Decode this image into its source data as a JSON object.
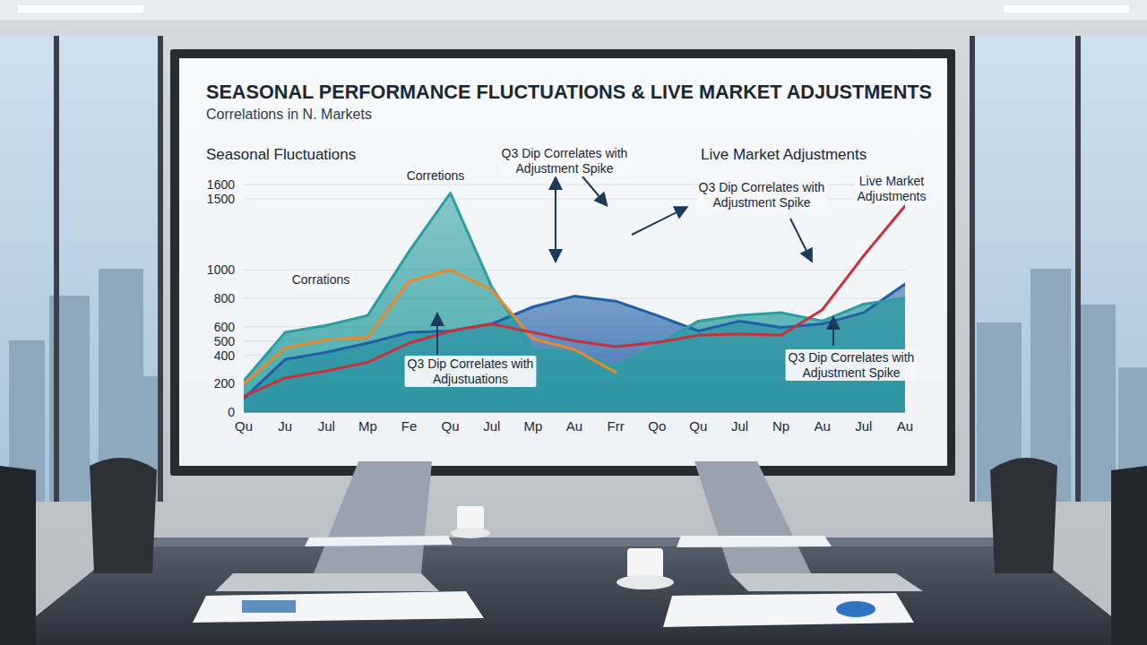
{
  "chart_data": {
    "type": "line",
    "title": "SEASONAL PERFORMANCE FLUCTUATIONS & LIVE MARKET ADJUSTMENTS",
    "subtitle": "Correlations in N. Markets",
    "section_labels": [
      "Seasonal Fluctuations",
      "Live Market Adjustments"
    ],
    "annotations": [
      {
        "lines": [
          "Corrations"
        ]
      },
      {
        "lines": [
          "Corretions"
        ]
      },
      {
        "lines": [
          "Q3 Dip Correlates with",
          "Adjustment Spike"
        ]
      },
      {
        "lines": [
          "Q3 Dip Correlates with",
          "Adjustment Spike"
        ]
      },
      {
        "lines": [
          "Live Market",
          "Adjustments"
        ]
      },
      {
        "lines": [
          "Q3 Dip Correlates with",
          "Adjustuations"
        ]
      },
      {
        "lines": [
          "Q3 Dip Correlates with",
          "Adjustment Spike"
        ]
      }
    ],
    "categories": [
      "Qu",
      "Ju",
      "Jul",
      "Mp",
      "Fe",
      "Qu",
      "Jul",
      "Mp",
      "Au",
      "Frr",
      "Qo",
      "Qu",
      "Jul",
      "Np",
      "Au",
      "Jul",
      "Au"
    ],
    "series": [
      {
        "color": "#1f5fa8",
        "type": "area",
        "values": [
          95,
          370,
          420,
          485,
          560,
          570,
          620,
          740,
          815,
          780,
          680,
          570,
          640,
          595,
          620,
          700,
          900
        ]
      },
      {
        "color": "#2a9ea0",
        "type": "area",
        "values": [
          220,
          560,
          610,
          680,
          1130,
          1540,
          880,
          440,
          420,
          320,
          470,
          640,
          680,
          700,
          640,
          760,
          800
        ]
      },
      {
        "color": "#e8892b",
        "type": "line",
        "values": [
          200,
          450,
          510,
          525,
          920,
          1000,
          860,
          515,
          440,
          280,
          null,
          null,
          null,
          null,
          null,
          null,
          null
        ]
      },
      {
        "color": "#c8303a",
        "type": "line",
        "values": [
          110,
          240,
          290,
          350,
          485,
          570,
          620,
          560,
          500,
          460,
          490,
          540,
          550,
          540,
          720,
          1100,
          1450
        ]
      }
    ],
    "ylim": [
      0,
      1600
    ],
    "yticks": [
      0,
      200,
      400,
      500,
      600,
      800,
      1000,
      1500,
      1600
    ],
    "grid": true
  }
}
